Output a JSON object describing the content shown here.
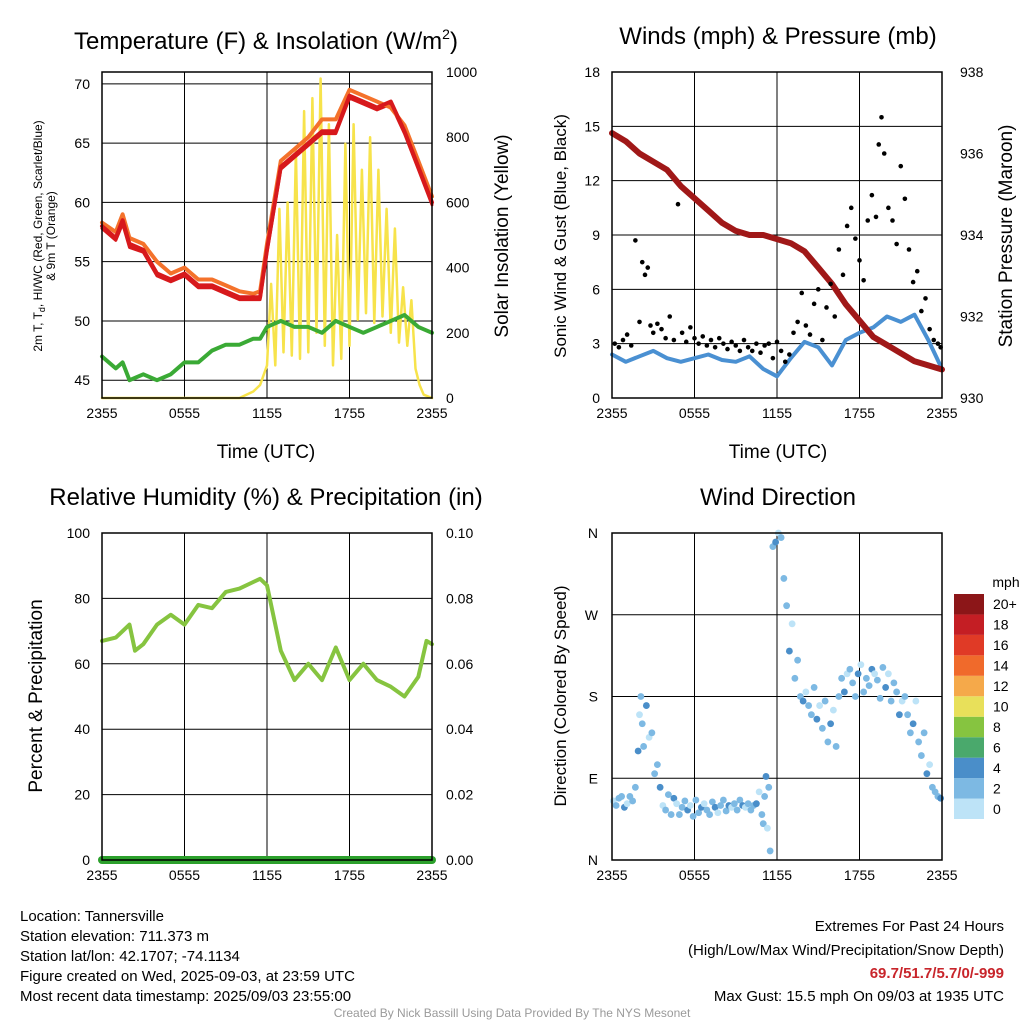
{
  "colors": {
    "temp": "#d7191c",
    "heat_index": "#f4722b",
    "dewpoint": "#3aaa35",
    "insolation": "#f7e34b",
    "wind": "#4a90d2",
    "gust": "#000000",
    "pressure": "#a01818",
    "rh": "#86c440",
    "precip": "#2ca02c"
  },
  "chart_data": [
    {
      "type": "line",
      "title": "Temperature (F) & Insolation (W/m²)",
      "title_main": "Temperature (F) & Insolation (W/m",
      "title_sup": "2",
      "title_end": ")",
      "xlabel": "Time (UTC)",
      "ylabel_lines": [
        "2m T, T",
        "d",
        ", HI/WC (Red, Green, Scarlet/Blue)",
        "& 9m T (Orange)"
      ],
      "y2label": "Solar Insolation (Yellow)",
      "x_ticks": [
        "2355",
        "0555",
        "1155",
        "1755",
        "2355"
      ],
      "ylim": [
        43.5,
        71
      ],
      "y_ticks": [
        45,
        50,
        55,
        60,
        65,
        70
      ],
      "y2lim": [
        0,
        1000
      ],
      "y2_ticks": [
        0,
        200,
        400,
        600,
        800,
        1000
      ],
      "hours": [
        0,
        1,
        1.5,
        2,
        3,
        4,
        5,
        6,
        7,
        8,
        9,
        10,
        11,
        11.5,
        12,
        13,
        14,
        15,
        16,
        17,
        18,
        19,
        20,
        21,
        22,
        23,
        24
      ],
      "series": [
        {
          "name": "2m T",
          "values": [
            58,
            57,
            58.5,
            56.5,
            56,
            54,
            53.5,
            54,
            53,
            53,
            52.5,
            52,
            52,
            52,
            56,
            63,
            64,
            65,
            66,
            66,
            69,
            68.5,
            68,
            68.5,
            66,
            63,
            60
          ]
        },
        {
          "name": "9m T",
          "values": [
            58.3,
            57.5,
            59,
            57,
            56.5,
            55,
            54,
            54.5,
            53.5,
            53.5,
            53,
            52.5,
            52.3,
            52.5,
            56.5,
            63.5,
            64.5,
            65.5,
            67,
            67,
            69.5,
            69,
            68.5,
            68,
            66.5,
            63.5,
            60.5
          ]
        },
        {
          "name": "HI/WC",
          "values": [
            57.8,
            56.8,
            58.2,
            56.2,
            55.8,
            53.8,
            53.3,
            53.8,
            52.8,
            52.8,
            52.3,
            51.8,
            51.8,
            51.8,
            55.8,
            62.8,
            63.8,
            64.8,
            65.8,
            65.8,
            68.8,
            68.3,
            67.8,
            68.3,
            65.8,
            62.8,
            59.8
          ]
        },
        {
          "name": "Td",
          "values": [
            47,
            46,
            46.5,
            45,
            45.5,
            45,
            45.5,
            46.5,
            46.5,
            47.5,
            48,
            48,
            48.5,
            48.5,
            49.5,
            50,
            49.5,
            49.5,
            49,
            50,
            49.5,
            49,
            49.5,
            50,
            50.5,
            49.5,
            49
          ]
        }
      ],
      "insolation": {
        "name": "Insolation",
        "hours": [
          0,
          10,
          11,
          11.5,
          12,
          12.3,
          12.6,
          12.9,
          13.2,
          13.5,
          13.8,
          14.1,
          14.4,
          14.7,
          15.0,
          15.3,
          15.6,
          15.9,
          16.2,
          16.5,
          16.8,
          17.1,
          17.4,
          17.7,
          18.0,
          18.3,
          18.6,
          18.9,
          19.2,
          19.5,
          19.8,
          20.1,
          20.4,
          20.7,
          21.0,
          21.3,
          21.6,
          21.9,
          22.2,
          22.5,
          22.8,
          23.1,
          23.4,
          24
        ],
        "values": [
          0,
          0,
          20,
          40,
          100,
          350,
          100,
          580,
          140,
          600,
          130,
          760,
          120,
          880,
          140,
          920,
          200,
          980,
          160,
          840,
          100,
          500,
          120,
          780,
          160,
          840,
          240,
          700,
          260,
          800,
          230,
          700,
          250,
          580,
          200,
          520,
          170,
          340,
          160,
          300,
          90,
          40,
          10,
          0
        ]
      }
    },
    {
      "type": "line",
      "title": "Winds (mph) & Pressure (mb)",
      "xlabel": "Time (UTC)",
      "ylabel": "Sonic Wind & Gust (Blue, Black)",
      "y2label": "Station Pressure (Maroon)",
      "x_ticks": [
        "2355",
        "0555",
        "1155",
        "1755",
        "2355"
      ],
      "ylim": [
        0,
        18
      ],
      "y_ticks": [
        0,
        3,
        6,
        9,
        12,
        15,
        18
      ],
      "y2lim": [
        930,
        938
      ],
      "y2_ticks": [
        930,
        932,
        934,
        936,
        938
      ],
      "hours": [
        0,
        1,
        2,
        3,
        4,
        5,
        6,
        7,
        8,
        9,
        10,
        11,
        12,
        13,
        14,
        15,
        16,
        17,
        18,
        19,
        20,
        21,
        22,
        23,
        24
      ],
      "series": [
        {
          "name": "Sonic Wind",
          "values": [
            2.4,
            2,
            2.3,
            2.6,
            2.2,
            2,
            2.2,
            2.4,
            2.1,
            2,
            2.3,
            1.6,
            1.2,
            2.2,
            3.1,
            2.8,
            1.8,
            3.2,
            3.6,
            3.9,
            4.5,
            4.2,
            4.6,
            3.2,
            1.6
          ]
        },
        {
          "name": "Pressure",
          "values": [
            936.5,
            936.3,
            936.0,
            935.8,
            935.6,
            935.2,
            934.9,
            934.6,
            934.3,
            934.1,
            934.0,
            934.0,
            933.9,
            933.8,
            933.6,
            933.2,
            932.8,
            932.3,
            931.9,
            931.5,
            931.3,
            931.1,
            930.9,
            930.8,
            930.7
          ]
        }
      ],
      "gusts": {
        "name": "Gust",
        "hours": [
          0.2,
          0.5,
          0.8,
          1.1,
          1.4,
          1.7,
          2.0,
          2.2,
          2.4,
          2.6,
          2.8,
          3.0,
          3.3,
          3.6,
          3.9,
          4.2,
          4.5,
          4.8,
          5.1,
          5.4,
          5.7,
          6.0,
          6.3,
          6.6,
          6.9,
          7.2,
          7.5,
          7.8,
          8.1,
          8.4,
          8.7,
          9.0,
          9.3,
          9.6,
          9.9,
          10.2,
          10.5,
          10.8,
          11.1,
          11.4,
          11.7,
          12.0,
          12.3,
          12.6,
          12.9,
          13.2,
          13.5,
          13.8,
          14.1,
          14.4,
          14.7,
          15.0,
          15.3,
          15.6,
          15.9,
          16.2,
          16.5,
          16.8,
          17.1,
          17.4,
          17.7,
          18.0,
          18.3,
          18.6,
          18.9,
          19.2,
          19.4,
          19.6,
          19.8,
          20.1,
          20.4,
          20.7,
          21.0,
          21.3,
          21.6,
          21.9,
          22.2,
          22.5,
          22.8,
          23.1,
          23.4,
          23.7,
          23.9
        ],
        "values": [
          3.0,
          2.8,
          3.2,
          3.5,
          2.9,
          8.7,
          4.2,
          7.5,
          6.8,
          7.2,
          4.0,
          3.6,
          4.1,
          3.8,
          3.3,
          4.5,
          3.2,
          10.7,
          3.6,
          3.1,
          3.9,
          3.3,
          3.0,
          3.4,
          2.9,
          3.2,
          2.8,
          3.3,
          3.0,
          2.7,
          3.1,
          2.9,
          2.6,
          3.2,
          2.8,
          2.6,
          3.0,
          2.5,
          2.9,
          3.0,
          2.2,
          3.1,
          2.6,
          2.0,
          2.4,
          3.6,
          4.2,
          5.8,
          4.0,
          3.5,
          5.2,
          6.0,
          3.2,
          5.0,
          6.3,
          4.5,
          8.2,
          6.8,
          9.5,
          10.5,
          8.8,
          7.6,
          6.5,
          9.8,
          11.2,
          10.0,
          14.0,
          15.5,
          13.5,
          10.5,
          9.8,
          8.5,
          12.8,
          11.0,
          8.2,
          6.4,
          7.0,
          4.8,
          5.5,
          3.8,
          3.2,
          3.0,
          2.8
        ]
      }
    },
    {
      "type": "line",
      "title": "Relative Humidity (%) & Precipitation (in)",
      "ylabel": "Percent & Precipitation",
      "x_ticks": [
        "2355",
        "0555",
        "1155",
        "1755",
        "2355"
      ],
      "ylim": [
        0,
        100
      ],
      "y_ticks": [
        0,
        20,
        40,
        60,
        80,
        100
      ],
      "y2lim": [
        0,
        0.1
      ],
      "y2_ticks": [
        "0.00",
        "0.02",
        "0.04",
        "0.06",
        "0.08",
        "0.10"
      ],
      "hours": [
        0,
        1,
        2,
        2.4,
        3,
        4,
        5,
        6,
        7,
        8,
        9,
        10,
        11,
        11.5,
        12,
        12.5,
        13,
        14,
        15,
        16,
        17,
        18,
        19,
        20,
        21,
        22,
        23,
        23.6,
        24
      ],
      "series": [
        {
          "name": "RH",
          "values": [
            67,
            68,
            72,
            64,
            66,
            72,
            75,
            72,
            78,
            77,
            82,
            83,
            85,
            86,
            84,
            74,
            64,
            55,
            60,
            55,
            65,
            55,
            60,
            55,
            53,
            50,
            56,
            67,
            66
          ]
        },
        {
          "name": "Precipitation",
          "values": [
            0,
            0,
            0,
            0,
            0,
            0,
            0,
            0,
            0,
            0,
            0,
            0,
            0,
            0,
            0,
            0,
            0,
            0,
            0,
            0,
            0,
            0,
            0,
            0,
            0,
            0,
            0,
            0,
            0
          ]
        }
      ]
    },
    {
      "type": "scatter",
      "title": "Wind Direction",
      "ylabel": "Direction (Colored By Speed)",
      "x_ticks": [
        "2355",
        "0555",
        "1155",
        "1755",
        "2355"
      ],
      "y_tick_labels": [
        "N",
        "E",
        "S",
        "W",
        "N"
      ],
      "ylim": [
        0,
        360
      ],
      "colorbar": {
        "title": "mph",
        "labels": [
          "0",
          "2",
          "4",
          "6",
          "8",
          "10",
          "12",
          "14",
          "16",
          "18",
          "20+"
        ],
        "colors": [
          "#bde3f7",
          "#7db9e3",
          "#4a8ec9",
          "#4aa96c",
          "#86c440",
          "#e8e05a",
          "#f5a94a",
          "#f06a2b",
          "#e03a26",
          "#c41e24",
          "#8c1618"
        ]
      },
      "points": {
        "hours": [
          0.1,
          0.3,
          0.5,
          0.7,
          0.9,
          1.1,
          1.3,
          1.5,
          1.7,
          1.9,
          2.0,
          2.1,
          2.2,
          2.3,
          2.5,
          2.7,
          2.9,
          3.1,
          3.3,
          3.5,
          3.7,
          3.9,
          4.1,
          4.3,
          4.5,
          4.7,
          4.9,
          5.1,
          5.3,
          5.5,
          5.7,
          5.9,
          6.1,
          6.3,
          6.5,
          6.7,
          6.9,
          7.1,
          7.3,
          7.5,
          7.7,
          7.9,
          8.1,
          8.3,
          8.5,
          8.7,
          8.9,
          9.1,
          9.3,
          9.5,
          9.7,
          9.9,
          10.1,
          10.3,
          10.5,
          10.7,
          10.9,
          11.0,
          11.1,
          11.2,
          11.3,
          11.4,
          11.5,
          11.7,
          11.9,
          12.1,
          12.3,
          12.5,
          12.7,
          12.9,
          13.1,
          13.3,
          13.5,
          13.7,
          13.9,
          14.1,
          14.3,
          14.5,
          14.7,
          14.9,
          15.1,
          15.3,
          15.5,
          15.7,
          15.9,
          16.1,
          16.3,
          16.5,
          16.7,
          16.9,
          17.1,
          17.3,
          17.5,
          17.7,
          17.9,
          18.1,
          18.3,
          18.5,
          18.7,
          18.9,
          19.1,
          19.3,
          19.5,
          19.7,
          19.9,
          20.1,
          20.3,
          20.5,
          20.7,
          20.9,
          21.1,
          21.3,
          21.5,
          21.7,
          21.9,
          22.1,
          22.3,
          22.5,
          22.7,
          22.9,
          23.1,
          23.3,
          23.5,
          23.7,
          23.9
        ],
        "values": [
          65,
          60,
          68,
          70,
          58,
          62,
          70,
          65,
          80,
          120,
          160,
          180,
          150,
          125,
          170,
          135,
          140,
          95,
          105,
          80,
          60,
          55,
          72,
          50,
          68,
          62,
          50,
          58,
          65,
          55,
          60,
          48,
          66,
          52,
          58,
          62,
          55,
          50,
          64,
          58,
          52,
          60,
          66,
          54,
          60,
          58,
          62,
          55,
          66,
          60,
          58,
          62,
          55,
          60,
          62,
          75,
          50,
          40,
          70,
          92,
          35,
          80,
          10,
          345,
          350,
          360,
          355,
          310,
          280,
          230,
          260,
          200,
          220,
          180,
          175,
          185,
          170,
          160,
          190,
          155,
          170,
          145,
          175,
          130,
          150,
          165,
          125,
          180,
          200,
          185,
          205,
          210,
          195,
          180,
          205,
          215,
          185,
          200,
          192,
          210,
          205,
          198,
          178,
          212,
          190,
          205,
          175,
          195,
          185,
          160,
          175,
          180,
          160,
          140,
          150,
          175,
          130,
          115,
          140,
          95,
          105,
          80,
          75,
          70,
          68
        ]
      }
    }
  ],
  "station_info": [
    "Location: Tannersville",
    "Station elevation: 711.373 m",
    "Station lat/lon: 42.1707; -74.1134",
    "Figure created on Wed, 2025-09-03, at 23:59 UTC",
    "Most recent data timestamp: 2025/09/03 23:55:00"
  ],
  "extremes": {
    "heading": "Extremes For Past 24 Hours",
    "subheading": "(High/Low/Max Wind/Precipitation/Snow Depth)",
    "values": "69.7/51.7/5.7/0/-999",
    "max_gust": "Max Gust: 15.5 mph On 09/03 at 1935 UTC"
  },
  "credit": "Created By Nick Bassill Using Data Provided By The NYS Mesonet"
}
